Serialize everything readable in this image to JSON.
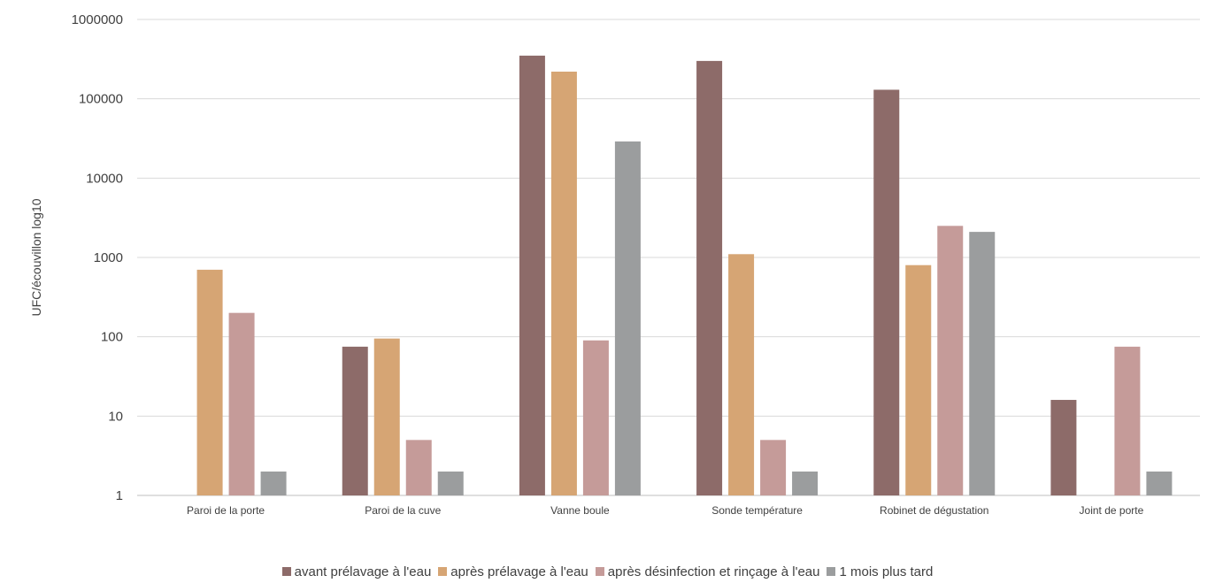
{
  "chart_data": {
    "type": "bar",
    "title": "",
    "xlabel": "",
    "ylabel": "UFC/écouvillon log10",
    "yscale": "log10",
    "ylim": [
      1,
      1000000
    ],
    "yticks": [
      "1",
      "10",
      "100",
      "1000",
      "10000",
      "100000",
      "1000000"
    ],
    "grid": true,
    "legend_position": "bottom",
    "categories": [
      "Paroi de la porte",
      "Paroi de la cuve",
      "Vanne boule",
      "Sonde température",
      "Robinet de dégustation",
      "Joint de porte"
    ],
    "series": [
      {
        "name": "avant prélavage à l'eau",
        "color": "#8d6b69",
        "values": [
          null,
          75,
          350000,
          300000,
          130000,
          16
        ]
      },
      {
        "name": "après prélavage à l'eau",
        "color": "#d6a574",
        "values": [
          700,
          95,
          220000,
          1100,
          800,
          null
        ]
      },
      {
        "name": "après désinfection et rinçage à l'eau",
        "color": "#c59b99",
        "values": [
          200,
          5,
          90,
          5,
          2500,
          75
        ]
      },
      {
        "name": "1 mois plus tard",
        "color": "#9b9d9e",
        "values": [
          2,
          2,
          29000,
          2,
          2100,
          2
        ]
      }
    ]
  }
}
